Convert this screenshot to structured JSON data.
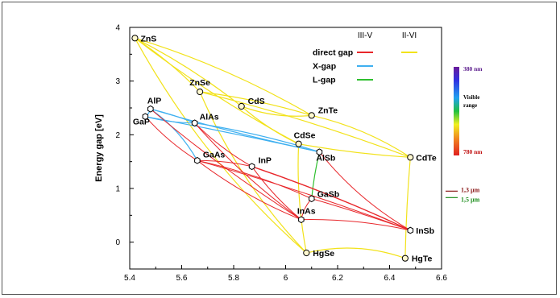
{
  "chart_data": {
    "type": "scatter",
    "title": "",
    "xlabel": "",
    "ylabel": "Energy gap [eV]",
    "xlim": [
      5.4,
      6.6
    ],
    "ylim": [
      -0.5,
      4.0
    ],
    "x_ticks": [
      "5.4",
      "5.6",
      "5.8",
      "6",
      "6.2",
      "6.4",
      "6.6"
    ],
    "y_ticks": [
      "0",
      "1",
      "2",
      "3",
      "4"
    ],
    "compounds": [
      {
        "name": "ZnS",
        "x": 5.42,
        "y": 3.8,
        "group": "II-VI",
        "marker": "circle"
      },
      {
        "name": "ZnSe",
        "x": 5.67,
        "y": 2.8,
        "group": "II-VI",
        "marker": "circle"
      },
      {
        "name": "CdS",
        "x": 5.83,
        "y": 2.53,
        "group": "II-VI",
        "marker": "circle"
      },
      {
        "name": "ZnTe",
        "x": 6.1,
        "y": 2.36,
        "group": "II-VI",
        "marker": "circle"
      },
      {
        "name": "CdSe",
        "x": 6.05,
        "y": 1.83,
        "group": "II-VI",
        "marker": "circle"
      },
      {
        "name": "CdTe",
        "x": 6.48,
        "y": 1.58,
        "group": "II-VI",
        "marker": "circle"
      },
      {
        "name": "HgSe",
        "x": 6.08,
        "y": -0.2,
        "group": "II-VI",
        "marker": "circle"
      },
      {
        "name": "HgTe",
        "x": 6.46,
        "y": -0.3,
        "group": "II-VI",
        "marker": "circle"
      },
      {
        "name": "AlP",
        "x": 5.48,
        "y": 2.48,
        "group": "III-V",
        "marker": "hexagon"
      },
      {
        "name": "GaP",
        "x": 5.46,
        "y": 2.34,
        "group": "III-V",
        "marker": "hexagon"
      },
      {
        "name": "AlAs",
        "x": 5.65,
        "y": 2.22,
        "group": "III-V",
        "marker": "hexagon"
      },
      {
        "name": "GaAs",
        "x": 5.66,
        "y": 1.52,
        "group": "III-V",
        "marker": "hexagon"
      },
      {
        "name": "InP",
        "x": 5.87,
        "y": 1.41,
        "group": "III-V",
        "marker": "hexagon"
      },
      {
        "name": "AlSb",
        "x": 6.13,
        "y": 1.68,
        "group": "III-V",
        "marker": "hexagon"
      },
      {
        "name": "GaSb",
        "x": 6.1,
        "y": 0.81,
        "group": "III-V",
        "marker": "hexagon"
      },
      {
        "name": "InAs",
        "x": 6.06,
        "y": 0.42,
        "group": "III-V",
        "marker": "hexagon"
      },
      {
        "name": "InSb",
        "x": 6.48,
        "y": 0.22,
        "group": "III-V",
        "marker": "hexagon"
      }
    ],
    "legend": {
      "header_iii_v": "III-V",
      "header_ii_vi": "II-VI",
      "entries": [
        {
          "label": "direct gap",
          "color": "#e8262a",
          "group": "III-V"
        },
        {
          "label": "X-gap",
          "color": "#3fb0f0",
          "group": "III-V"
        },
        {
          "label": "L-gap",
          "color": "#2fbf2f",
          "group": "III-V"
        }
      ],
      "ii_vi_color": "#f2e21a"
    },
    "scale_labels": {
      "top": "380 nm",
      "middle_line1": "Visible",
      "middle_line2": "range",
      "bottom": "780 nm",
      "marker_1": "1,3 µm",
      "marker_2": "1,5 µm"
    },
    "scale_marker_energies": [
      0.95,
      0.83
    ],
    "colors": {
      "iii_v_direct": "#e8262a",
      "x_gap": "#3fb0f0",
      "l_gap": "#2fbf2f",
      "ii_vi": "#f2e21a",
      "label_dark_red": "#8b1a1a",
      "label_green": "#1f8f1f",
      "label_purple": "#5a1a8b"
    }
  }
}
